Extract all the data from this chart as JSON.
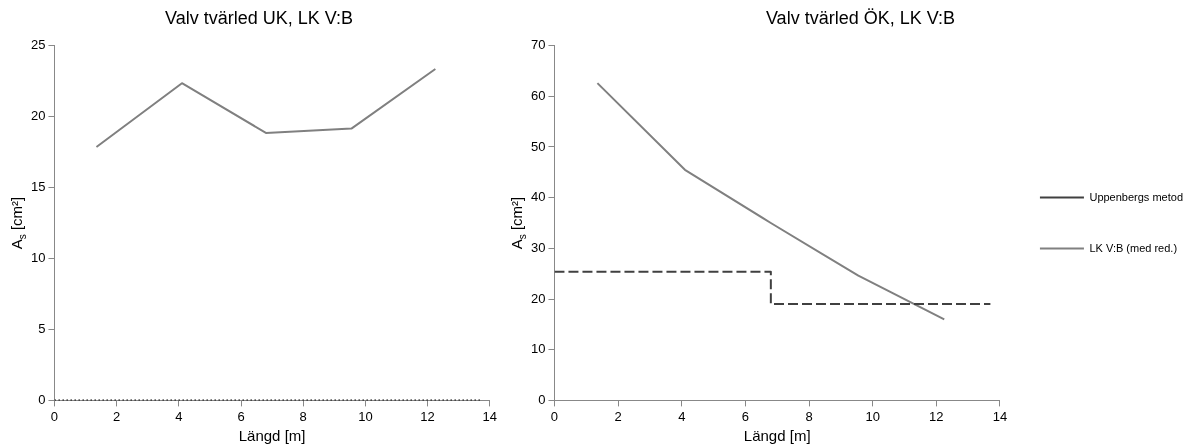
{
  "chart_data": [
    {
      "type": "line",
      "title": "Valv tvärled UK, LK V:B",
      "xlabel": "Längd [m]",
      "ylabel": "A$_{s}$ [cm²]",
      "xlim": [
        0,
        14
      ],
      "xticks": [
        0,
        2,
        4,
        6,
        8,
        10,
        12,
        14
      ],
      "ylim": [
        0,
        25
      ],
      "yticks": [
        0,
        5,
        10,
        15,
        20,
        25
      ],
      "grid": false,
      "legend": false,
      "marker": "none",
      "series": [
        {
          "color": "#000000",
          "line_style": "dotted",
          "x": [
            0,
            13.7
          ],
          "values": [
            0,
            0
          ]
        },
        {
          "color": "#808080",
          "line_style": "solid",
          "x": [
            1.35,
            4.1,
            6.8,
            9.55,
            12.25
          ],
          "values": [
            17.85,
            22.35,
            18.85,
            19.15,
            23.35
          ]
        }
      ]
    },
    {
      "type": "line",
      "title": "Valv tvärled ÖK, LK V:B",
      "xlabel": "Längd [m]",
      "ylabel": "A$_{s}$ [cm²]",
      "xlim": [
        0,
        14
      ],
      "xticks": [
        0,
        2,
        4,
        6,
        8,
        10,
        12,
        14
      ],
      "ylim": [
        0,
        70
      ],
      "yticks": [
        0,
        10,
        20,
        30,
        40,
        50,
        60,
        70
      ],
      "grid": false,
      "legend": "right",
      "marker": "none",
      "series": [
        {
          "name": "Uppenbergs metod",
          "color": "#404040",
          "line_style": "dashed",
          "x": [
            0,
            6.8,
            6.8,
            13.7
          ],
          "values": [
            25.4,
            25.4,
            19,
            19
          ]
        },
        {
          "name": "LK V:B (med red.)",
          "color": "#808080",
          "line_style": "solid",
          "x": [
            1.35,
            4.1,
            6.8,
            9.55,
            12.25
          ],
          "values": [
            62.6,
            45.5,
            35,
            24.6,
            16
          ]
        }
      ]
    }
  ]
}
